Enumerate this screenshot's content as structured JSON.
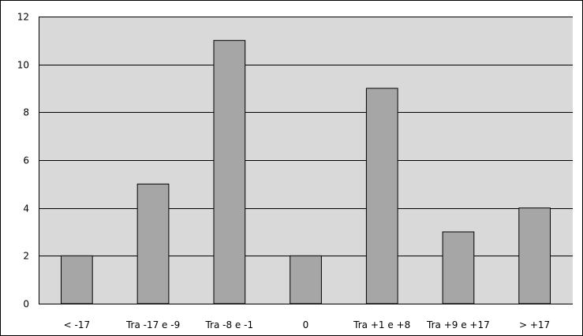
{
  "chart_data": {
    "type": "bar",
    "categories": [
      "< -17",
      "Tra -17 e -9",
      "Tra -8 e -1",
      "0",
      "Tra +1 e +8",
      "Tra +9 e +17",
      "> +17"
    ],
    "values": [
      2,
      5,
      11,
      2,
      9,
      3,
      4
    ],
    "title": "",
    "xlabel": "",
    "ylabel": "",
    "ylim": [
      0,
      12
    ],
    "yticks": [
      0,
      2,
      4,
      6,
      8,
      10,
      12
    ],
    "grid": true,
    "legend": "none",
    "colors": {
      "plot_background": "#d9d9d9",
      "bar_fill": "#a6a6a6",
      "bar_stroke": "#000000",
      "gridline": "#000000"
    }
  }
}
